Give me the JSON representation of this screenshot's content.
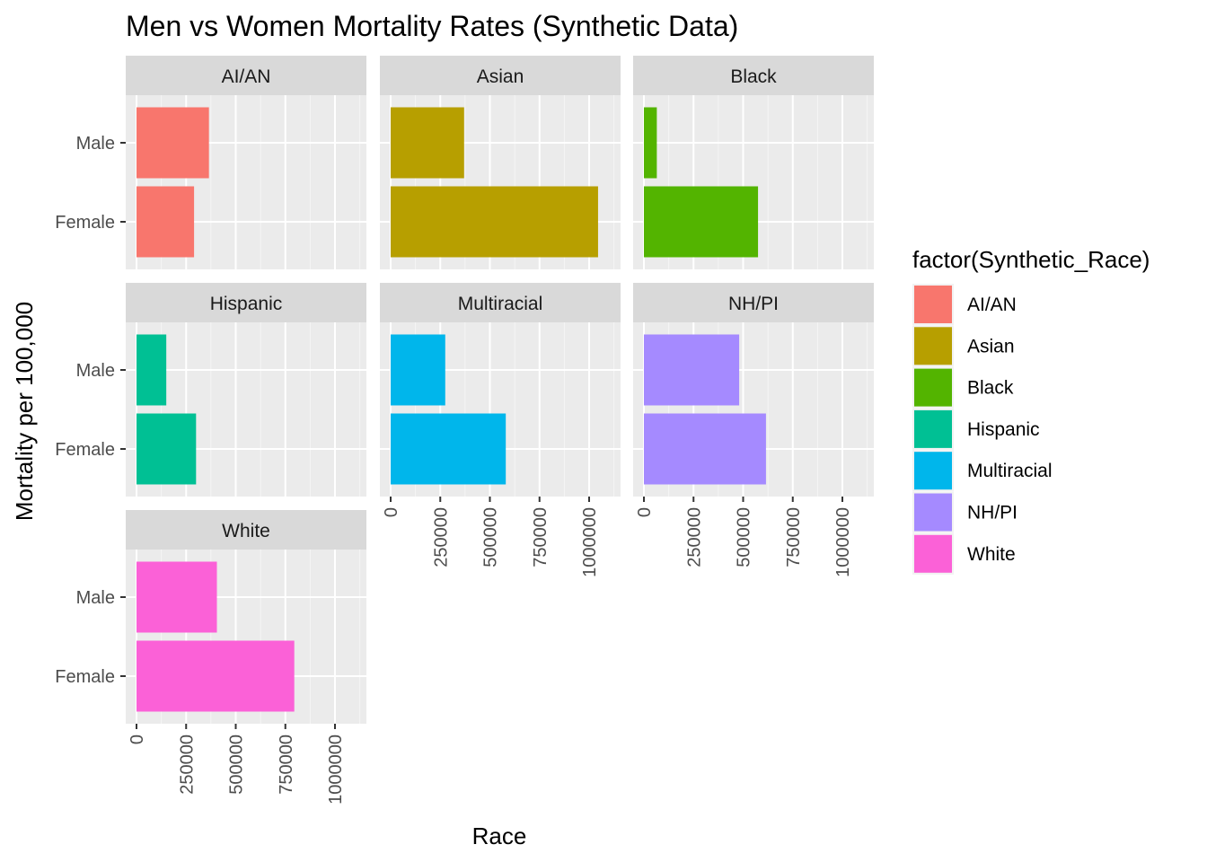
{
  "chart_data": {
    "type": "bar",
    "orientation": "horizontal",
    "facets": "wrap, 3 columns",
    "title": "Men vs Women Mortality Rates (Synthetic Data)",
    "xlabel": "Race",
    "ylabel": "Mortality per 100,000",
    "xlim": [
      0,
      1100000
    ],
    "x_ticks": [
      0,
      250000,
      500000,
      750000,
      1000000
    ],
    "x_tick_labels": [
      "0",
      "250000",
      "500000",
      "750000",
      "1000000"
    ],
    "categories": [
      "Male",
      "Female"
    ],
    "grid": true,
    "legend": {
      "title": "factor(Synthetic_Race)",
      "position": "right"
    },
    "series": [
      {
        "name": "AI/AN",
        "color": "#F8766D",
        "values": [
          365000,
          290000
        ]
      },
      {
        "name": "Asian",
        "color": "#B79F00",
        "values": [
          370000,
          1045000
        ]
      },
      {
        "name": "Black",
        "color": "#53B400",
        "values": [
          65000,
          575000
        ]
      },
      {
        "name": "Hispanic",
        "color": "#00C094",
        "values": [
          150000,
          300000
        ]
      },
      {
        "name": "Multiracial",
        "color": "#00B6EB",
        "values": [
          275000,
          580000
        ]
      },
      {
        "name": "NH/PI",
        "color": "#A58AFF",
        "values": [
          480000,
          615000
        ]
      },
      {
        "name": "White",
        "color": "#FB61D7",
        "values": [
          405000,
          795000
        ]
      }
    ]
  }
}
